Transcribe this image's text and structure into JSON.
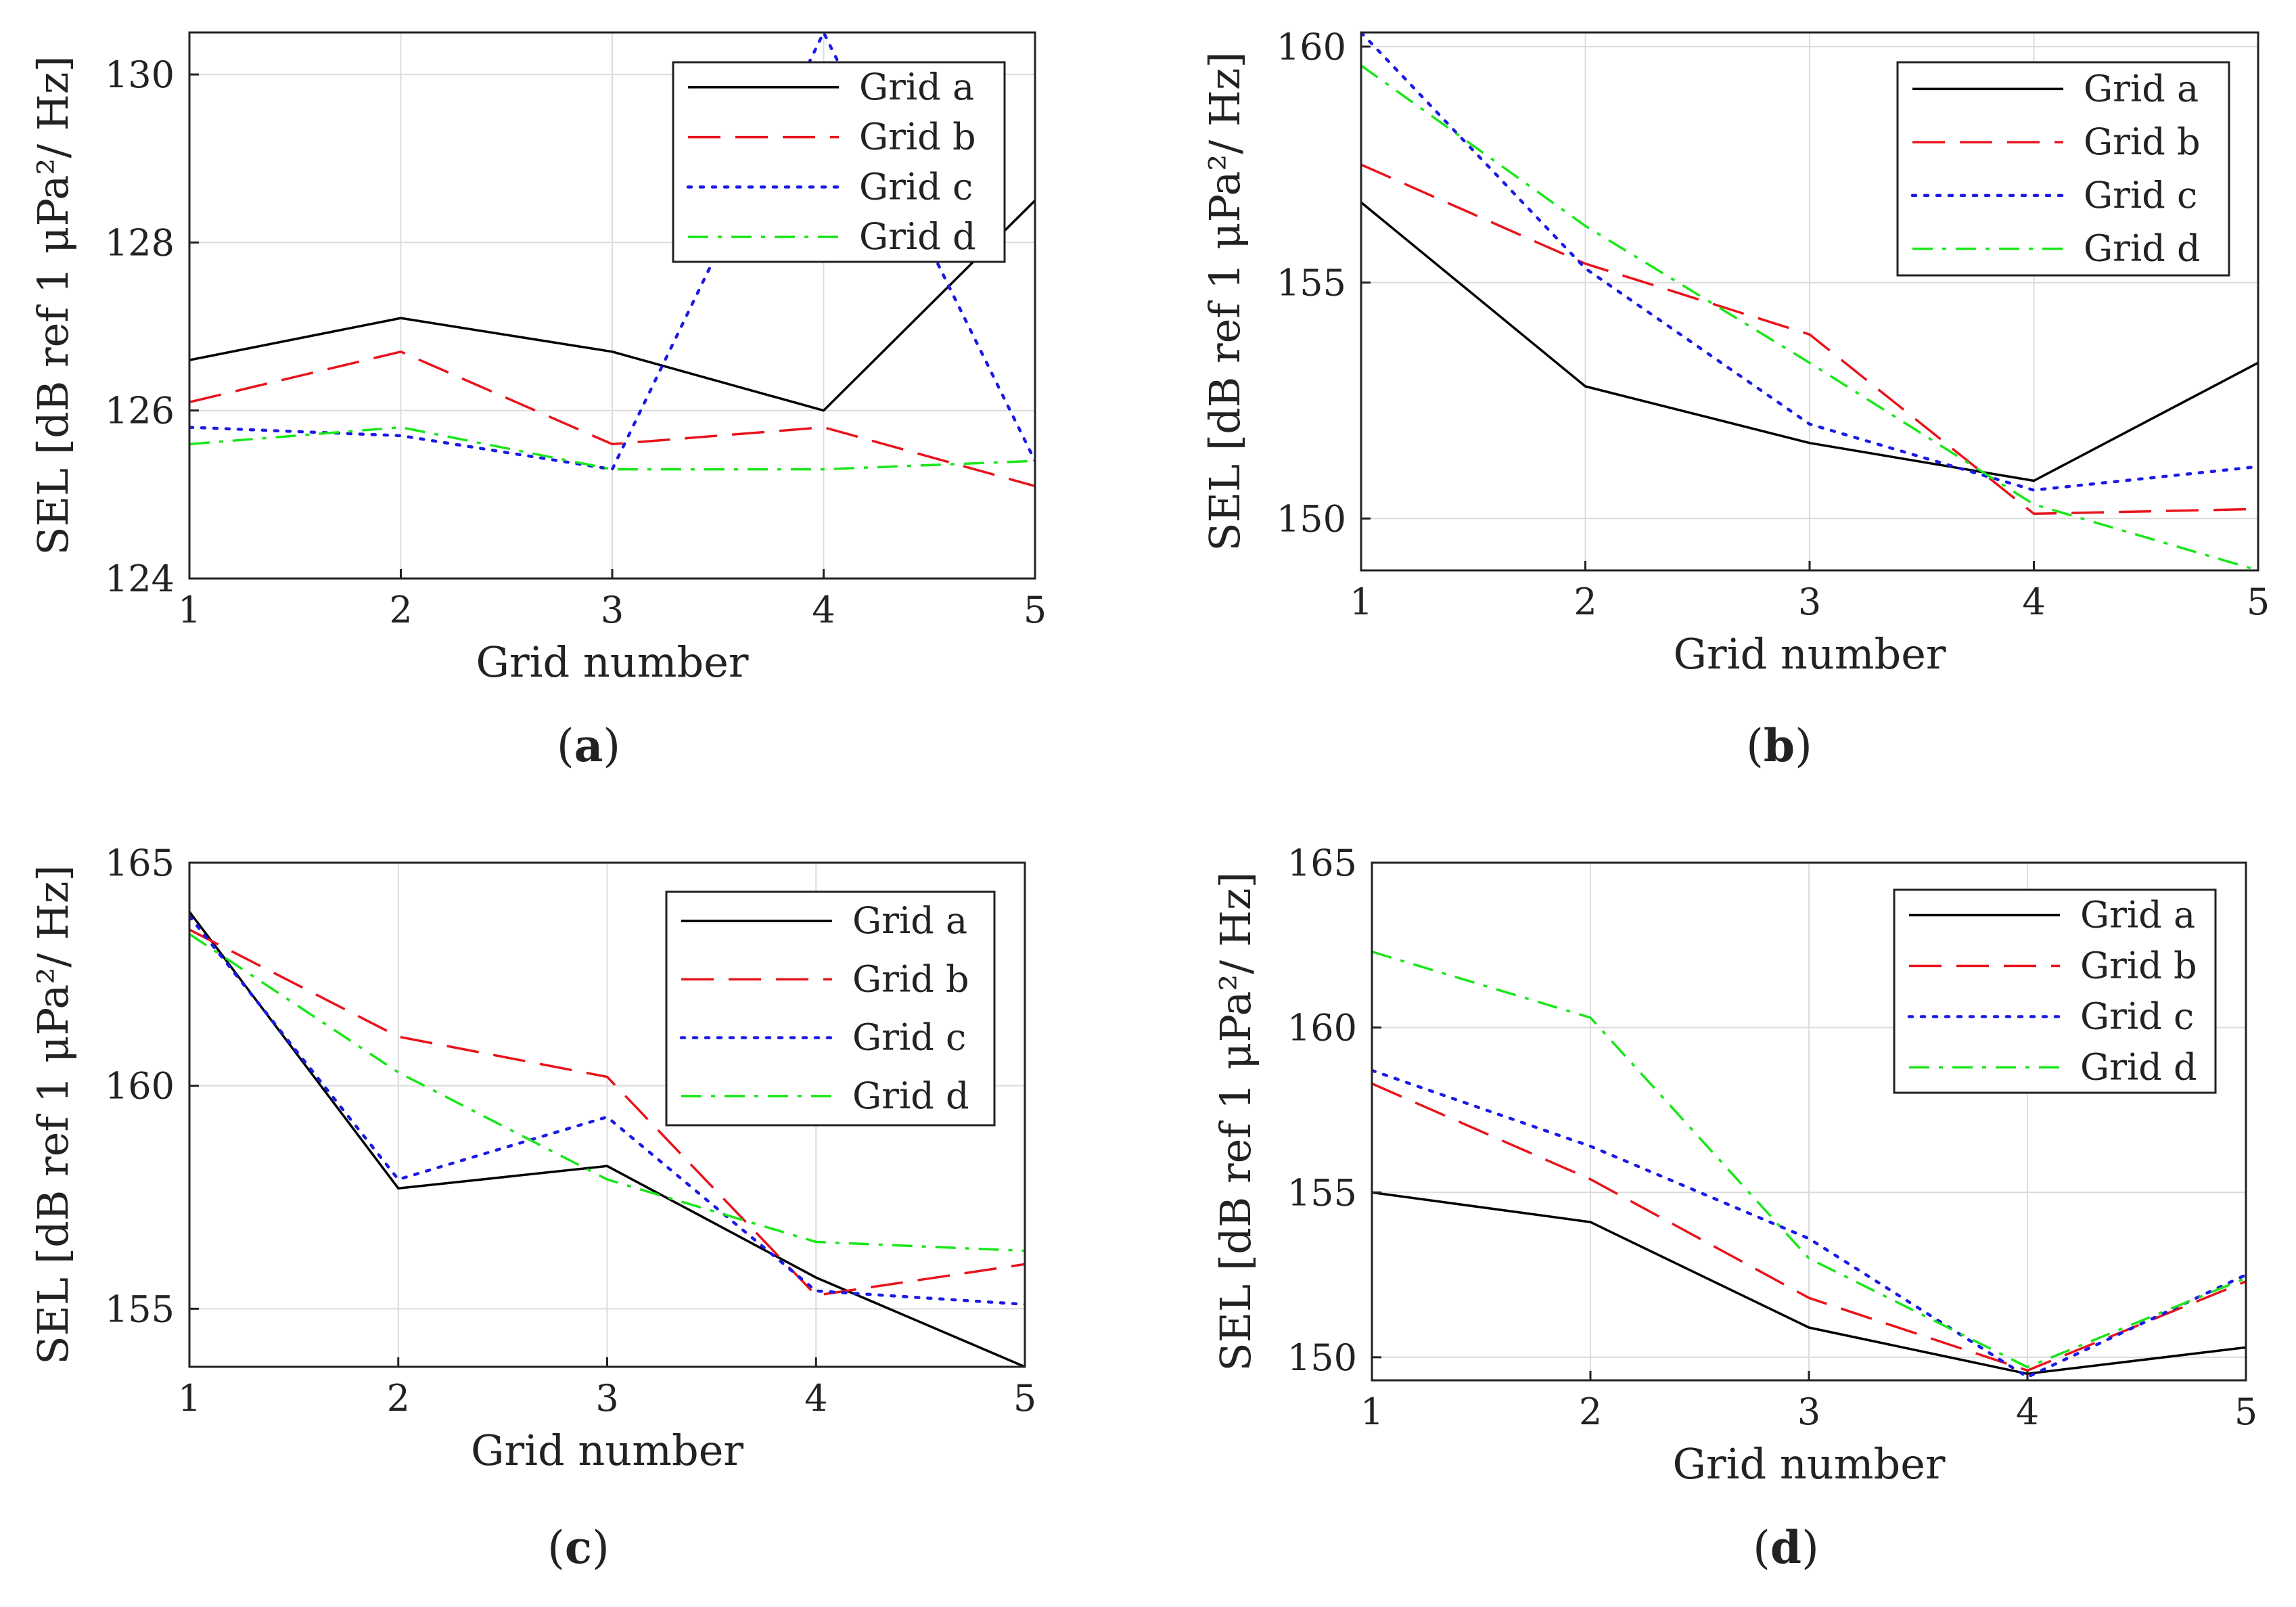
{
  "figure": {
    "captions": [
      "(a)",
      "(b)",
      "(c)",
      "(d)"
    ],
    "caption_letters": [
      "a",
      "b",
      "c",
      "d"
    ]
  },
  "series_styles": [
    {
      "color": "#000000",
      "dash": "solid"
    },
    {
      "color": "#e8131b",
      "dash": "dashed"
    },
    {
      "color": "#1a1ae6",
      "dash": "dotted"
    },
    {
      "color": "#19e619",
      "dash": "dashdot"
    }
  ],
  "chart_data": [
    {
      "type": "line",
      "panel": "a",
      "xlabel": "Grid number",
      "ylabel": "SEL [dB ref 1 μPa²/ Hz]",
      "x": [
        1,
        2,
        3,
        4,
        5
      ],
      "xticks": [
        1,
        2,
        3,
        4,
        5
      ],
      "xlim": [
        1,
        5
      ],
      "ylim": [
        124,
        130.5
      ],
      "yticks": [
        124,
        126,
        128,
        130
      ],
      "grid": true,
      "legend_position": "top-right",
      "series": [
        {
          "name": "Grid a",
          "values": [
            126.6,
            127.1,
            126.7,
            126.0,
            128.5
          ]
        },
        {
          "name": "Grid b",
          "values": [
            126.1,
            126.7,
            125.6,
            125.8,
            125.1
          ]
        },
        {
          "name": "Grid c",
          "values": [
            125.8,
            125.7,
            125.3,
            130.5,
            125.4
          ]
        },
        {
          "name": "Grid d",
          "values": [
            125.6,
            125.8,
            125.3,
            125.3,
            125.4
          ]
        }
      ]
    },
    {
      "type": "line",
      "panel": "b",
      "xlabel": "Grid number",
      "ylabel": "SEL [dB ref 1 μPa²/ Hz]",
      "x": [
        1,
        2,
        3,
        4,
        5
      ],
      "xticks": [
        1,
        2,
        3,
        4,
        5
      ],
      "xlim": [
        1,
        5
      ],
      "ylim": [
        148.9,
        160.3
      ],
      "yticks": [
        150,
        155,
        160
      ],
      "grid": true,
      "legend_position": "top-right",
      "series": [
        {
          "name": "Grid a",
          "values": [
            156.7,
            152.8,
            151.6,
            150.8,
            153.3
          ]
        },
        {
          "name": "Grid b",
          "values": [
            157.5,
            155.4,
            153.9,
            150.1,
            150.2
          ]
        },
        {
          "name": "Grid c",
          "values": [
            160.3,
            155.3,
            152.0,
            150.6,
            151.1
          ]
        },
        {
          "name": "Grid d",
          "values": [
            159.6,
            156.2,
            153.3,
            150.3,
            148.9
          ]
        }
      ]
    },
    {
      "type": "line",
      "panel": "c",
      "xlabel": "Grid number",
      "ylabel": "SEL [dB ref 1 μPa²/ Hz]",
      "x": [
        1,
        2,
        3,
        4,
        5
      ],
      "xticks": [
        1,
        2,
        3,
        4,
        5
      ],
      "xlim": [
        1,
        5
      ],
      "ylim": [
        153.7,
        165
      ],
      "yticks": [
        155,
        160,
        165
      ],
      "grid": true,
      "legend_position": "top-right",
      "series": [
        {
          "name": "Grid a",
          "values": [
            163.9,
            157.7,
            158.2,
            155.7,
            153.7
          ]
        },
        {
          "name": "Grid b",
          "values": [
            163.5,
            161.1,
            160.2,
            155.3,
            156.0
          ]
        },
        {
          "name": "Grid c",
          "values": [
            163.8,
            157.9,
            159.3,
            155.4,
            155.1
          ]
        },
        {
          "name": "Grid d",
          "values": [
            163.4,
            160.3,
            157.9,
            156.5,
            156.3
          ]
        }
      ]
    },
    {
      "type": "line",
      "panel": "d",
      "xlabel": "Grid number",
      "ylabel": "SEL [dB ref 1 μPa²/ Hz]",
      "x": [
        1,
        2,
        3,
        4,
        5
      ],
      "xticks": [
        1,
        2,
        3,
        4,
        5
      ],
      "xlim": [
        1,
        5
      ],
      "ylim": [
        149.3,
        165
      ],
      "yticks": [
        150,
        155,
        160,
        165
      ],
      "grid": true,
      "legend_position": "top-right",
      "series": [
        {
          "name": "Grid a",
          "values": [
            155.0,
            154.1,
            150.9,
            149.5,
            150.3
          ]
        },
        {
          "name": "Grid b",
          "values": [
            158.3,
            155.4,
            151.8,
            149.6,
            152.3
          ]
        },
        {
          "name": "Grid c",
          "values": [
            158.7,
            156.4,
            153.6,
            149.4,
            152.5
          ]
        },
        {
          "name": "Grid d",
          "values": [
            162.3,
            160.3,
            153.0,
            149.7,
            152.4
          ]
        }
      ]
    }
  ]
}
